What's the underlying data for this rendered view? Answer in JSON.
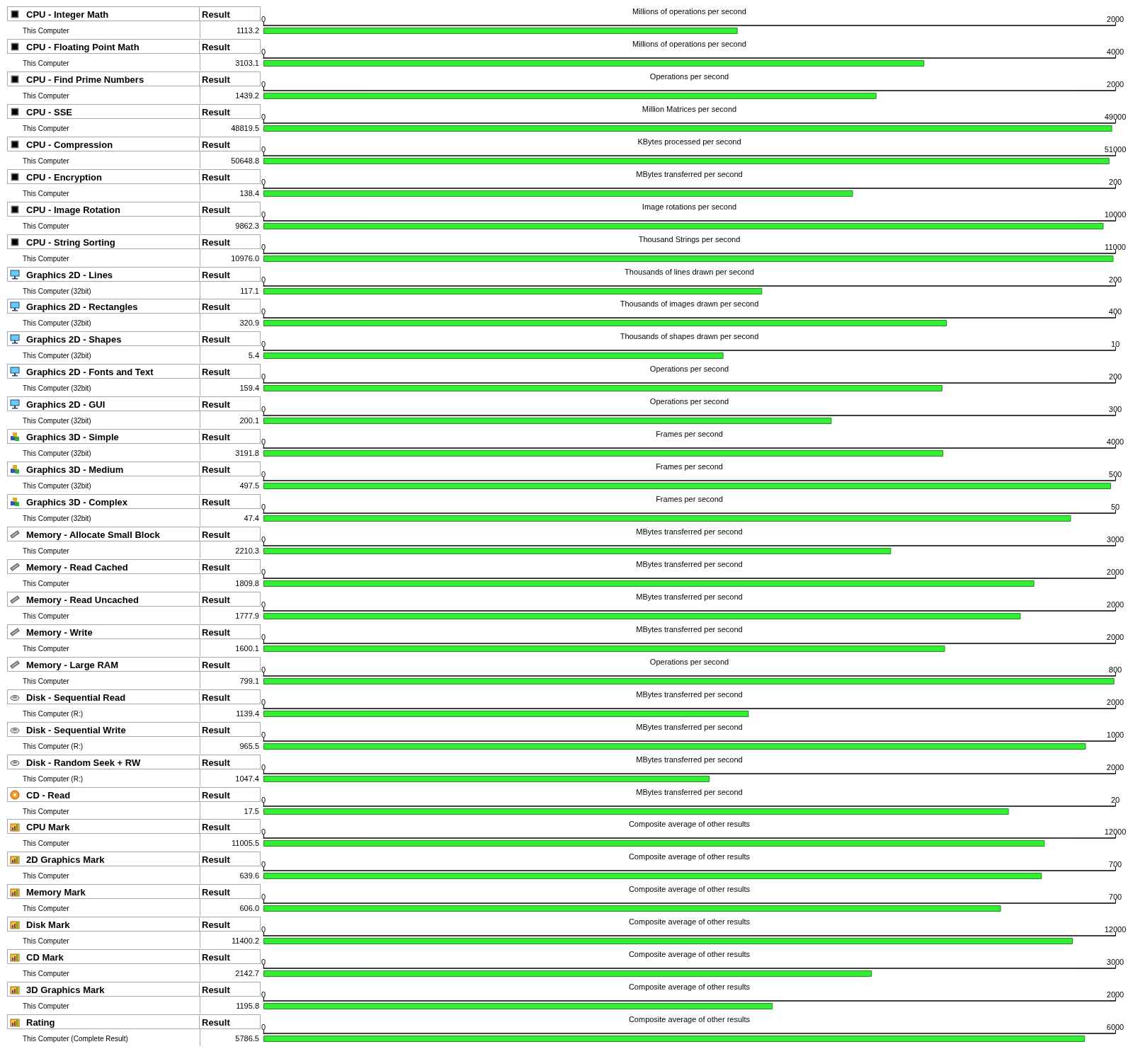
{
  "chart_data": [
    {
      "type": "bar",
      "orientation": "horizontal",
      "title": "CPU - Integer Math",
      "annotations": [
        "Result"
      ],
      "categories": [
        "This Computer"
      ],
      "series": [
        {
          "values": [
            1113.2
          ],
          "value_labels": [
            "1113.2"
          ],
          "color": "#33ee33",
          "axis": "x2"
        }
      ],
      "x2label": "Millions of operations per second",
      "x2lim": [
        0,
        2000
      ],
      "x2ticks": [
        0,
        2000
      ],
      "grid": false
    },
    {
      "type": "bar",
      "orientation": "horizontal",
      "title": "CPU - Floating Point Math",
      "annotations": [
        "Result"
      ],
      "categories": [
        "This Computer"
      ],
      "series": [
        {
          "values": [
            3103.1
          ],
          "value_labels": [
            "3103.1"
          ],
          "color": "#33ee33",
          "axis": "x2"
        }
      ],
      "x2label": "Millions of operations per second",
      "x2lim": [
        0,
        4000
      ],
      "x2ticks": [
        0,
        4000
      ],
      "grid": false
    },
    {
      "type": "bar",
      "orientation": "horizontal",
      "title": "CPU - Find Prime Numbers",
      "annotations": [
        "Result"
      ],
      "categories": [
        "This Computer"
      ],
      "series": [
        {
          "values": [
            1439.2
          ],
          "value_labels": [
            "1439.2"
          ],
          "color": "#33ee33",
          "axis": "x2"
        }
      ],
      "x2label": "Operations per second",
      "x2lim": [
        0,
        2000
      ],
      "x2ticks": [
        0,
        2000
      ],
      "grid": false
    },
    {
      "type": "bar",
      "orientation": "horizontal",
      "title": "CPU - SSE",
      "annotations": [
        "Result"
      ],
      "categories": [
        "This Computer"
      ],
      "series": [
        {
          "values": [
            48819.5
          ],
          "value_labels": [
            "48819.5"
          ],
          "color": "#33ee33",
          "axis": "x2"
        }
      ],
      "x2label": "Million Matrices per second",
      "x2lim": [
        0,
        49000
      ],
      "x2ticks": [
        0,
        49000
      ],
      "grid": false
    },
    {
      "type": "bar",
      "orientation": "horizontal",
      "title": "CPU - Compression",
      "annotations": [
        "Result"
      ],
      "categories": [
        "This Computer"
      ],
      "series": [
        {
          "values": [
            50648.8
          ],
          "value_labels": [
            "50648.8"
          ],
          "color": "#33ee33",
          "axis": "x2"
        }
      ],
      "x2label": "KBytes processed per second",
      "x2lim": [
        0,
        51000
      ],
      "x2ticks": [
        0,
        51000
      ],
      "grid": false
    },
    {
      "type": "bar",
      "orientation": "horizontal",
      "title": "CPU - Encryption",
      "annotations": [
        "Result"
      ],
      "categories": [
        "This Computer"
      ],
      "series": [
        {
          "values": [
            138.4
          ],
          "value_labels": [
            "138.4"
          ],
          "color": "#33ee33",
          "axis": "x2"
        }
      ],
      "x2label": "MBytes transferred per second",
      "x2lim": [
        0,
        200
      ],
      "x2ticks": [
        0,
        200
      ],
      "grid": false
    },
    {
      "type": "bar",
      "orientation": "horizontal",
      "title": "CPU - Image Rotation",
      "annotations": [
        "Result"
      ],
      "categories": [
        "This Computer"
      ],
      "series": [
        {
          "values": [
            9862.3
          ],
          "value_labels": [
            "9862.3"
          ],
          "color": "#33ee33",
          "axis": "x2"
        }
      ],
      "x2label": "Image rotations per second",
      "x2lim": [
        0,
        10000
      ],
      "x2ticks": [
        0,
        10000
      ],
      "grid": false
    },
    {
      "type": "bar",
      "orientation": "horizontal",
      "title": "CPU - String Sorting",
      "annotations": [
        "Result"
      ],
      "categories": [
        "This Computer"
      ],
      "series": [
        {
          "values": [
            10976.0
          ],
          "value_labels": [
            "10976.0"
          ],
          "color": "#33ee33",
          "axis": "x2"
        }
      ],
      "x2label": "Thousand Strings per second",
      "x2lim": [
        0,
        11000
      ],
      "x2ticks": [
        0,
        11000
      ],
      "grid": false
    },
    {
      "type": "bar",
      "orientation": "horizontal",
      "title": "Graphics 2D - Lines",
      "annotations": [
        "Result"
      ],
      "categories": [
        "This Computer (32bit)"
      ],
      "series": [
        {
          "values": [
            117.1
          ],
          "value_labels": [
            "117.1"
          ],
          "color": "#33ee33",
          "axis": "x2"
        }
      ],
      "x2label": "Thousands of lines drawn per second",
      "x2lim": [
        0,
        200
      ],
      "x2ticks": [
        0,
        200
      ],
      "grid": false
    },
    {
      "type": "bar",
      "orientation": "horizontal",
      "title": "Graphics 2D - Rectangles",
      "annotations": [
        "Result"
      ],
      "categories": [
        "This Computer (32bit)"
      ],
      "series": [
        {
          "values": [
            320.9
          ],
          "value_labels": [
            "320.9"
          ],
          "color": "#33ee33",
          "axis": "x2"
        }
      ],
      "x2label": "Thousands of images drawn per second",
      "x2lim": [
        0,
        400
      ],
      "x2ticks": [
        0,
        400
      ],
      "grid": false
    },
    {
      "type": "bar",
      "orientation": "horizontal",
      "title": "Graphics 2D - Shapes",
      "annotations": [
        "Result"
      ],
      "categories": [
        "This Computer (32bit)"
      ],
      "series": [
        {
          "values": [
            5.4
          ],
          "value_labels": [
            "5.4"
          ],
          "color": "#33ee33",
          "axis": "x2"
        }
      ],
      "x2label": "Thousands of shapes drawn per second",
      "x2lim": [
        0,
        10
      ],
      "x2ticks": [
        0,
        10
      ],
      "grid": false
    },
    {
      "type": "bar",
      "orientation": "horizontal",
      "title": "Graphics 2D - Fonts and Text",
      "annotations": [
        "Result"
      ],
      "categories": [
        "This Computer (32bit)"
      ],
      "series": [
        {
          "values": [
            159.4
          ],
          "value_labels": [
            "159.4"
          ],
          "color": "#33ee33",
          "axis": "x2"
        }
      ],
      "x2label": "Operations per second",
      "x2lim": [
        0,
        200
      ],
      "x2ticks": [
        0,
        200
      ],
      "grid": false
    },
    {
      "type": "bar",
      "orientation": "horizontal",
      "title": "Graphics 2D - GUI",
      "annotations": [
        "Result"
      ],
      "categories": [
        "This Computer (32bit)"
      ],
      "series": [
        {
          "values": [
            200.1
          ],
          "value_labels": [
            "200.1"
          ],
          "color": "#33ee33",
          "axis": "x2"
        }
      ],
      "x2label": "Operations per second",
      "x2lim": [
        0,
        300
      ],
      "x2ticks": [
        0,
        300
      ],
      "grid": false
    },
    {
      "type": "bar",
      "orientation": "horizontal",
      "title": "Graphics 3D - Simple",
      "annotations": [
        "Result"
      ],
      "categories": [
        "This Computer (32bit)"
      ],
      "series": [
        {
          "values": [
            3191.8
          ],
          "value_labels": [
            "3191.8"
          ],
          "color": "#33ee33",
          "axis": "x2"
        }
      ],
      "x2label": "Frames per second",
      "x2lim": [
        0,
        4000
      ],
      "x2ticks": [
        0,
        4000
      ],
      "grid": false
    },
    {
      "type": "bar",
      "orientation": "horizontal",
      "title": "Graphics 3D - Medium",
      "annotations": [
        "Result"
      ],
      "categories": [
        "This Computer (32bit)"
      ],
      "series": [
        {
          "values": [
            497.5
          ],
          "value_labels": [
            "497.5"
          ],
          "color": "#33ee33",
          "axis": "x2"
        }
      ],
      "x2label": "Frames per second",
      "x2lim": [
        0,
        500
      ],
      "x2ticks": [
        0,
        500
      ],
      "grid": false
    },
    {
      "type": "bar",
      "orientation": "horizontal",
      "title": "Graphics 3D - Complex",
      "annotations": [
        "Result"
      ],
      "categories": [
        "This Computer (32bit)"
      ],
      "series": [
        {
          "values": [
            47.4
          ],
          "value_labels": [
            "47.4"
          ],
          "color": "#33ee33",
          "axis": "x2"
        }
      ],
      "x2label": "Frames per second",
      "x2lim": [
        0,
        50
      ],
      "x2ticks": [
        0,
        50
      ],
      "grid": false
    },
    {
      "type": "bar",
      "orientation": "horizontal",
      "title": "Memory - Allocate Small Block",
      "annotations": [
        "Result"
      ],
      "categories": [
        "This Computer"
      ],
      "series": [
        {
          "values": [
            2210.3
          ],
          "value_labels": [
            "2210.3"
          ],
          "color": "#33ee33",
          "axis": "x2"
        }
      ],
      "x2label": "MBytes transferred per second",
      "x2lim": [
        0,
        3000
      ],
      "x2ticks": [
        0,
        3000
      ],
      "grid": false
    },
    {
      "type": "bar",
      "orientation": "horizontal",
      "title": "Memory - Read Cached",
      "annotations": [
        "Result"
      ],
      "categories": [
        "This Computer"
      ],
      "series": [
        {
          "values": [
            1809.8
          ],
          "value_labels": [
            "1809.8"
          ],
          "color": "#33ee33",
          "axis": "x2"
        }
      ],
      "x2label": "MBytes transferred per second",
      "x2lim": [
        0,
        2000
      ],
      "x2ticks": [
        0,
        2000
      ],
      "grid": false
    },
    {
      "type": "bar",
      "orientation": "horizontal",
      "title": "Memory - Read Uncached",
      "annotations": [
        "Result"
      ],
      "categories": [
        "This Computer"
      ],
      "series": [
        {
          "values": [
            1777.9
          ],
          "value_labels": [
            "1777.9"
          ],
          "color": "#33ee33",
          "axis": "x2"
        }
      ],
      "x2label": "MBytes transferred per second",
      "x2lim": [
        0,
        2000
      ],
      "x2ticks": [
        0,
        2000
      ],
      "grid": false
    },
    {
      "type": "bar",
      "orientation": "horizontal",
      "title": "Memory - Write",
      "annotations": [
        "Result"
      ],
      "categories": [
        "This Computer"
      ],
      "series": [
        {
          "values": [
            1600.1
          ],
          "value_labels": [
            "1600.1"
          ],
          "color": "#33ee33",
          "axis": "x2"
        }
      ],
      "x2label": "MBytes transferred per second",
      "x2lim": [
        0,
        2000
      ],
      "x2ticks": [
        0,
        2000
      ],
      "grid": false
    },
    {
      "type": "bar",
      "orientation": "horizontal",
      "title": "Memory - Large RAM",
      "annotations": [
        "Result"
      ],
      "categories": [
        "This Computer"
      ],
      "series": [
        {
          "values": [
            799.1
          ],
          "value_labels": [
            "799.1"
          ],
          "color": "#33ee33",
          "axis": "x2"
        }
      ],
      "x2label": "Operations per second",
      "x2lim": [
        0,
        800
      ],
      "x2ticks": [
        0,
        800
      ],
      "grid": false
    },
    {
      "type": "bar",
      "orientation": "horizontal",
      "title": "Disk - Sequential Read",
      "annotations": [
        "Result"
      ],
      "categories": [
        "This Computer (R:)"
      ],
      "series": [
        {
          "values": [
            1139.4
          ],
          "value_labels": [
            "1139.4"
          ],
          "color": "#33ee33",
          "axis": "x2"
        }
      ],
      "x2label": "MBytes transferred per second",
      "x2lim": [
        0,
        2000
      ],
      "x2ticks": [
        0,
        2000
      ],
      "grid": false
    },
    {
      "type": "bar",
      "orientation": "horizontal",
      "title": "Disk - Sequential Write",
      "annotations": [
        "Result"
      ],
      "categories": [
        "This Computer (R:)"
      ],
      "series": [
        {
          "values": [
            965.5
          ],
          "value_labels": [
            "965.5"
          ],
          "color": "#33ee33",
          "axis": "x2"
        }
      ],
      "x2label": "MBytes transferred per second",
      "x2lim": [
        0,
        1000
      ],
      "x2ticks": [
        0,
        1000
      ],
      "grid": false
    },
    {
      "type": "bar",
      "orientation": "horizontal",
      "title": "Disk - Random Seek + RW",
      "annotations": [
        "Result"
      ],
      "categories": [
        "This Computer (R:)"
      ],
      "series": [
        {
          "values": [
            1047.4
          ],
          "value_labels": [
            "1047.4"
          ],
          "color": "#33ee33",
          "axis": "x2"
        }
      ],
      "x2label": "MBytes transferred per second",
      "x2lim": [
        0,
        2000
      ],
      "x2ticks": [
        0,
        2000
      ],
      "grid": false
    },
    {
      "type": "bar",
      "orientation": "horizontal",
      "title": "CD - Read",
      "annotations": [
        "Result"
      ],
      "categories": [
        "This Computer"
      ],
      "series": [
        {
          "values": [
            17.5
          ],
          "value_labels": [
            "17.5"
          ],
          "color": "#33ee33",
          "axis": "x2"
        }
      ],
      "x2label": "MBytes transferred per second",
      "x2lim": [
        0,
        20
      ],
      "x2ticks": [
        0,
        20
      ],
      "grid": false
    },
    {
      "type": "bar",
      "orientation": "horizontal",
      "title": "CPU Mark",
      "annotations": [
        "Result"
      ],
      "categories": [
        "This Computer"
      ],
      "series": [
        {
          "values": [
            11005.5
          ],
          "value_labels": [
            "11005.5"
          ],
          "color": "#33ee33",
          "axis": "x2"
        }
      ],
      "x2label": "Composite average of other results",
      "x2lim": [
        0,
        12000
      ],
      "x2ticks": [
        0,
        12000
      ],
      "grid": false
    },
    {
      "type": "bar",
      "orientation": "horizontal",
      "title": "2D Graphics Mark",
      "annotations": [
        "Result"
      ],
      "categories": [
        "This Computer"
      ],
      "series": [
        {
          "values": [
            639.6
          ],
          "value_labels": [
            "639.6"
          ],
          "color": "#33ee33",
          "axis": "x2"
        }
      ],
      "x2label": "Composite average of other results",
      "x2lim": [
        0,
        700
      ],
      "x2ticks": [
        0,
        700
      ],
      "grid": false
    },
    {
      "type": "bar",
      "orientation": "horizontal",
      "title": "Memory Mark",
      "annotations": [
        "Result"
      ],
      "categories": [
        "This Computer"
      ],
      "series": [
        {
          "values": [
            606.0
          ],
          "value_labels": [
            "606.0"
          ],
          "color": "#33ee33",
          "axis": "x2"
        }
      ],
      "x2label": "Composite average of other results",
      "x2lim": [
        0,
        700
      ],
      "x2ticks": [
        0,
        700
      ],
      "grid": false
    },
    {
      "type": "bar",
      "orientation": "horizontal",
      "title": "Disk Mark",
      "annotations": [
        "Result"
      ],
      "categories": [
        "This Computer"
      ],
      "series": [
        {
          "values": [
            11400.2
          ],
          "value_labels": [
            "11400.2"
          ],
          "color": "#33ee33",
          "axis": "x2"
        }
      ],
      "x2label": "Composite average of other results",
      "x2lim": [
        0,
        12000
      ],
      "x2ticks": [
        0,
        12000
      ],
      "grid": false
    },
    {
      "type": "bar",
      "orientation": "horizontal",
      "title": "CD Mark",
      "annotations": [
        "Result"
      ],
      "categories": [
        "This Computer"
      ],
      "series": [
        {
          "values": [
            2142.7
          ],
          "value_labels": [
            "2142.7"
          ],
          "color": "#33ee33",
          "axis": "x2"
        }
      ],
      "x2label": "Composite average of other results",
      "x2lim": [
        0,
        3000
      ],
      "x2ticks": [
        0,
        3000
      ],
      "grid": false
    },
    {
      "type": "bar",
      "orientation": "horizontal",
      "title": "3D Graphics Mark",
      "annotations": [
        "Result"
      ],
      "categories": [
        "This Computer"
      ],
      "series": [
        {
          "values": [
            1195.8
          ],
          "value_labels": [
            "1195.8"
          ],
          "color": "#33ee33",
          "axis": "x2"
        }
      ],
      "x2label": "Composite average of other results",
      "x2lim": [
        0,
        2000
      ],
      "x2ticks": [
        0,
        2000
      ],
      "grid": false
    },
    {
      "type": "bar",
      "orientation": "horizontal",
      "title": "Rating",
      "annotations": [
        "Result"
      ],
      "categories": [
        "This Computer (Complete Result)"
      ],
      "series": [
        {
          "values": [
            5786.5
          ],
          "value_labels": [
            "5786.5"
          ],
          "color": "#33ee33",
          "axis": "x2"
        }
      ],
      "x2label": "Composite average of other results",
      "x2lim": [
        0,
        6000
      ],
      "x2ticks": [
        0,
        6000
      ],
      "grid": false
    }
  ]
}
